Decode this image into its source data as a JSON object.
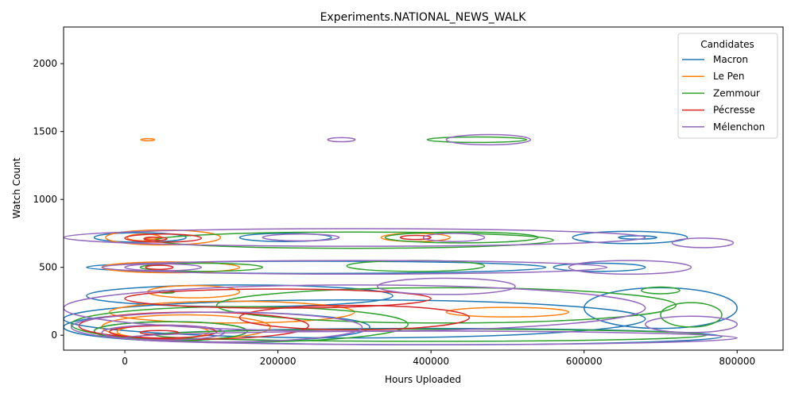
{
  "chart_data": {
    "type": "contour",
    "title": "Experiments.NATIONAL_NEWS_WALK",
    "xlabel": "Hours Uploaded",
    "ylabel": "Watch Count",
    "xlim": [
      -80000,
      860000
    ],
    "ylim": [
      -110,
      2270
    ],
    "xticks": [
      {
        "value": 0,
        "label": "0"
      },
      {
        "value": 200000,
        "label": "200000"
      },
      {
        "value": 400000,
        "label": "400000"
      },
      {
        "value": 600000,
        "label": "600000"
      },
      {
        "value": 800000,
        "label": "800000"
      }
    ],
    "yticks": [
      {
        "value": 0,
        "label": "0"
      },
      {
        "value": 500,
        "label": "500"
      },
      {
        "value": 1000,
        "label": "1000"
      },
      {
        "value": 1500,
        "label": "1500"
      },
      {
        "value": 2000,
        "label": "2000"
      }
    ],
    "grid": false,
    "legend": {
      "title": "Candidates",
      "position": "top-right"
    },
    "series": [
      {
        "name": "Macron",
        "color": "#1f77b4",
        "contours": [
          {
            "cx": 20000,
            "cy": 720,
            "rx": 60000,
            "ry": 35
          },
          {
            "cx": 210000,
            "cy": 720,
            "rx": 60000,
            "ry": 30
          },
          {
            "cx": 660000,
            "cy": 720,
            "rx": 75000,
            "ry": 45
          },
          {
            "cx": 670000,
            "cy": 720,
            "rx": 25000,
            "ry": 12
          },
          {
            "cx": 250000,
            "cy": 500,
            "rx": 300000,
            "ry": 45
          },
          {
            "cx": 620000,
            "cy": 500,
            "rx": 60000,
            "ry": 30
          },
          {
            "cx": 150000,
            "cy": 290,
            "rx": 200000,
            "ry": 80
          },
          {
            "cx": 700000,
            "cy": 200,
            "rx": 100000,
            "ry": 150
          },
          {
            "cx": 300000,
            "cy": 120,
            "rx": 380000,
            "ry": 140
          },
          {
            "cx": 120000,
            "cy": 60,
            "rx": 200000,
            "ry": 110
          },
          {
            "cx": 60000,
            "cy": 30,
            "rx": 100000,
            "ry": 70
          },
          {
            "cx": 400000,
            "cy": -10,
            "rx": 380000,
            "ry": 60
          }
        ]
      },
      {
        "name": "Le Pen",
        "color": "#ff7f0e",
        "contours": [
          {
            "cx": 30000,
            "cy": 1440,
            "rx": 9000,
            "ry": 8
          },
          {
            "cx": 50000,
            "cy": 720,
            "rx": 75000,
            "ry": 55
          },
          {
            "cx": 25000,
            "cy": 720,
            "rx": 22000,
            "ry": 25
          },
          {
            "cx": 35000,
            "cy": 715,
            "rx": 9000,
            "ry": 7
          },
          {
            "cx": 380000,
            "cy": 720,
            "rx": 45000,
            "ry": 30
          },
          {
            "cx": 60000,
            "cy": 500,
            "rx": 90000,
            "ry": 40
          },
          {
            "cx": 90000,
            "cy": 320,
            "rx": 60000,
            "ry": 45
          },
          {
            "cx": 500000,
            "cy": 170,
            "rx": 80000,
            "ry": 35
          },
          {
            "cx": 140000,
            "cy": 170,
            "rx": 160000,
            "ry": 80
          },
          {
            "cx": 80000,
            "cy": 60,
            "rx": 110000,
            "ry": 90
          },
          {
            "cx": 50000,
            "cy": 25,
            "rx": 60000,
            "ry": 50
          }
        ]
      },
      {
        "name": "Zemmour",
        "color": "#2ca02c",
        "contours": [
          {
            "cx": 460000,
            "cy": 1440,
            "rx": 65000,
            "ry": 20
          },
          {
            "cx": 300000,
            "cy": 700,
            "rx": 260000,
            "ry": 60
          },
          {
            "cx": 440000,
            "cy": 720,
            "rx": 100000,
            "ry": 40
          },
          {
            "cx": 100000,
            "cy": 500,
            "rx": 80000,
            "ry": 30
          },
          {
            "cx": 380000,
            "cy": 510,
            "rx": 90000,
            "ry": 40
          },
          {
            "cx": 700000,
            "cy": 330,
            "rx": 25000,
            "ry": 25
          },
          {
            "cx": 55000,
            "cy": 320,
            "rx": 10000,
            "ry": 10
          },
          {
            "cx": 420000,
            "cy": 220,
            "rx": 300000,
            "ry": 130
          },
          {
            "cx": 740000,
            "cy": 150,
            "rx": 40000,
            "ry": 90
          },
          {
            "cx": 150000,
            "cy": 80,
            "rx": 220000,
            "ry": 130
          },
          {
            "cx": 60000,
            "cy": 30,
            "rx": 100000,
            "ry": 70
          },
          {
            "cx": 400000,
            "cy": 0,
            "rx": 360000,
            "ry": 45
          }
        ]
      },
      {
        "name": "Pécresse",
        "color": "#d62728",
        "contours": [
          {
            "cx": 50000,
            "cy": 715,
            "rx": 50000,
            "ry": 30
          },
          {
            "cx": 40000,
            "cy": 710,
            "rx": 15000,
            "ry": 12
          },
          {
            "cx": 380000,
            "cy": 720,
            "rx": 20000,
            "ry": 15
          },
          {
            "cx": 45000,
            "cy": 500,
            "rx": 18000,
            "ry": 15
          },
          {
            "cx": 200000,
            "cy": 270,
            "rx": 200000,
            "ry": 70
          },
          {
            "cx": 300000,
            "cy": 130,
            "rx": 150000,
            "ry": 90
          },
          {
            "cx": 90000,
            "cy": 70,
            "rx": 150000,
            "ry": 100
          },
          {
            "cx": 50000,
            "cy": 25,
            "rx": 70000,
            "ry": 45
          },
          {
            "cx": 45000,
            "cy": 20,
            "rx": 25000,
            "ry": 15
          }
        ]
      },
      {
        "name": "Mélenchon",
        "color": "#9467bd",
        "contours": [
          {
            "cx": 283000,
            "cy": 1440,
            "rx": 18000,
            "ry": 15
          },
          {
            "cx": 475000,
            "cy": 1440,
            "rx": 55000,
            "ry": 38
          },
          {
            "cx": 300000,
            "cy": 720,
            "rx": 380000,
            "ry": 65
          },
          {
            "cx": 230000,
            "cy": 720,
            "rx": 50000,
            "ry": 25
          },
          {
            "cx": 430000,
            "cy": 720,
            "rx": 40000,
            "ry": 30
          },
          {
            "cx": 755000,
            "cy": 680,
            "rx": 40000,
            "ry": 35
          },
          {
            "cx": 300000,
            "cy": 500,
            "rx": 330000,
            "ry": 50
          },
          {
            "cx": 660000,
            "cy": 500,
            "rx": 80000,
            "ry": 50
          },
          {
            "cx": 50000,
            "cy": 500,
            "rx": 50000,
            "ry": 25
          },
          {
            "cx": 420000,
            "cy": 360,
            "rx": 90000,
            "ry": 60
          },
          {
            "cx": 300000,
            "cy": 200,
            "rx": 380000,
            "ry": 170
          },
          {
            "cx": 740000,
            "cy": 80,
            "rx": 60000,
            "ry": 60
          },
          {
            "cx": 120000,
            "cy": 60,
            "rx": 190000,
            "ry": 110
          },
          {
            "cx": 50000,
            "cy": 20,
            "rx": 80000,
            "ry": 55
          },
          {
            "cx": 400000,
            "cy": -20,
            "rx": 400000,
            "ry": 50
          }
        ]
      }
    ]
  }
}
